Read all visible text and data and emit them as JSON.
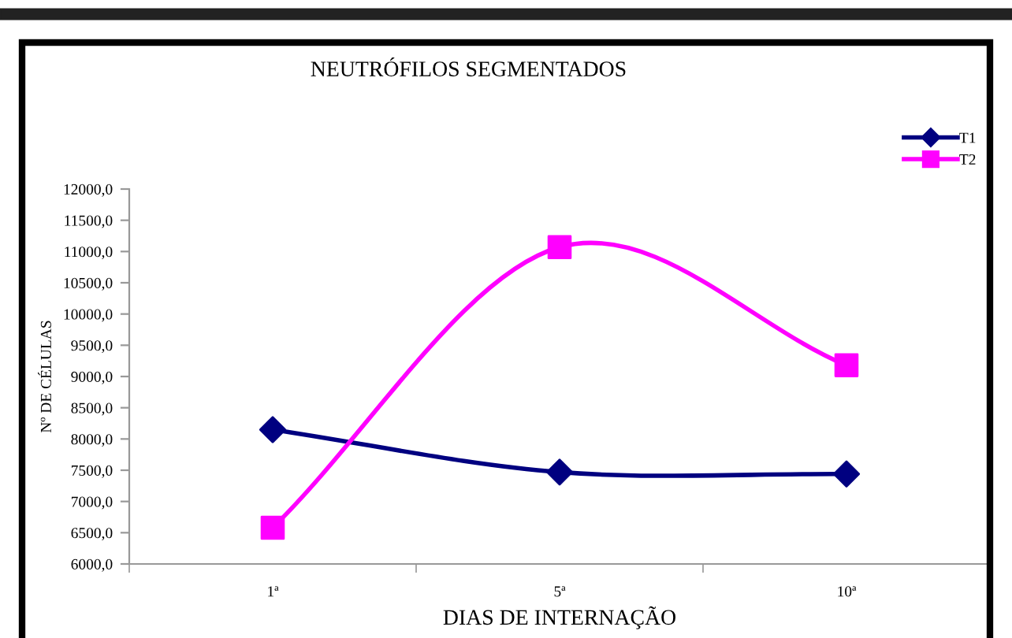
{
  "chart_data": {
    "type": "line",
    "title": "NEUTRÓFILOS SEGMENTADOS",
    "xlabel": "DIAS DE INTERNAÇÃO",
    "ylabel": "Nº DE CÉLULAS",
    "categories": [
      "1ª",
      "5ª",
      "10ª"
    ],
    "series": [
      {
        "name": "T1",
        "color": "#000080",
        "marker": "diamond",
        "values": [
          8150,
          7470,
          7440
        ]
      },
      {
        "name": "T2",
        "color": "#ff00ff",
        "marker": "square",
        "values": [
          6580,
          11070,
          9180
        ]
      }
    ],
    "ylim": [
      6000,
      12000
    ],
    "yticks": [
      {
        "value": 6000,
        "label": "6000,0"
      },
      {
        "value": 6500,
        "label": "6500,0"
      },
      {
        "value": 7000,
        "label": "7000,0"
      },
      {
        "value": 7500,
        "label": "7500,0"
      },
      {
        "value": 8000,
        "label": "8000,0"
      },
      {
        "value": 8500,
        "label": "8500,0"
      },
      {
        "value": 9000,
        "label": "9000,0"
      },
      {
        "value": 9500,
        "label": "9500,0"
      },
      {
        "value": 10000,
        "label": "10000,0"
      },
      {
        "value": 10500,
        "label": "10500,0"
      },
      {
        "value": 11000,
        "label": "11000,0"
      },
      {
        "value": 11500,
        "label": "11500,0"
      },
      {
        "value": 12000,
        "label": "12000,0"
      }
    ],
    "grid": false,
    "legend": "top right",
    "line_style": "solid"
  }
}
